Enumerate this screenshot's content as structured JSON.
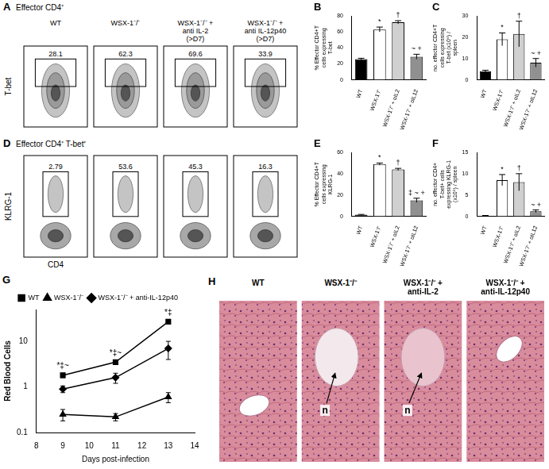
{
  "flow_panels": [
    {
      "panel": "A",
      "title": "Effector CD4⁺",
      "y_label": "T-bet",
      "headers": [
        "WT",
        "WSX-1⁻/⁻",
        "WSX-1⁻/⁻ + anti IL-2 (>D7)",
        "WSX-1⁻/⁻ + anti IL-12p40 (>D7)"
      ],
      "gates": [
        28.1,
        62.3,
        69.6,
        33.9
      ]
    },
    {
      "panel": "D",
      "title": "Effector CD4⁺ T-bet⁺",
      "y_label": "KLRG-1",
      "x_label": "CD4",
      "gates": [
        2.79,
        53.6,
        45.3,
        16.3
      ]
    }
  ],
  "chart_data": [
    {
      "panel": "B",
      "type": "bar",
      "y_label": "% Effector CD4+T cells expressing T-bet",
      "categories": [
        "WT",
        "WSX-1⁻/⁻",
        "WSX-1⁻/⁻ + αIL2",
        "WSX-1⁻/⁻ + αIL12"
      ],
      "values": [
        26,
        63,
        72,
        29
      ],
      "errors": [
        1,
        3,
        2,
        3
      ],
      "annotations": [
        null,
        "*",
        "†",
        "~ +"
      ],
      "colors": [
        "#000000",
        "#ffffff",
        "#d0d0d0",
        "#909090"
      ],
      "ylim": [
        0,
        80
      ],
      "yticks": [
        0,
        20,
        40,
        60,
        80
      ],
      "grid": false
    },
    {
      "panel": "C",
      "type": "bar",
      "y_label": "no. effector CD4+T cells expressing T-bet (x10⁶) / spleen",
      "categories": [
        "WT",
        "WSX-1⁻/⁻",
        "WSX-1⁻/⁻ + αIL2",
        "WSX-1⁻/⁻ + αIL12"
      ],
      "values": [
        4,
        19,
        21.5,
        8
      ],
      "errors": [
        0.5,
        3,
        6,
        2
      ],
      "annotations": [
        null,
        "*",
        "†",
        "~ +"
      ],
      "colors": [
        "#000000",
        "#ffffff",
        "#d0d0d0",
        "#909090"
      ],
      "ylim": [
        0,
        30
      ],
      "yticks": [
        0,
        10,
        20,
        30
      ],
      "grid": false
    },
    {
      "panel": "E",
      "type": "bar",
      "y_label": "% Effector CD4+T cells expressing KLRG-1",
      "categories": [
        "WT",
        "WSX-1⁻/⁻",
        "WSX-1⁻/⁻ + αIL2",
        "WSX-1⁻/⁻ + αIL12"
      ],
      "values": [
        1.5,
        49,
        44,
        15
      ],
      "errors": [
        0.3,
        1,
        1,
        2
      ],
      "annotations": [
        null,
        "*",
        "†",
        "‡ ~ +"
      ],
      "colors": [
        "#000000",
        "#ffffff",
        "#d0d0d0",
        "#909090"
      ],
      "ylim": [
        0,
        60
      ],
      "yticks": [
        0,
        20,
        40,
        60
      ],
      "grid": false
    },
    {
      "panel": "F",
      "type": "bar",
      "y_label": "no. effector CD4+ T-bet+ cells expressing KLRG-1 (x10⁶) / spleen",
      "categories": [
        "WT",
        "WSX-1⁻/⁻",
        "WSX-1⁻/⁻ + αIL2",
        "WSX-1⁻/⁻ + αIL12"
      ],
      "values": [
        0.1,
        8.5,
        8,
        1.2
      ],
      "errors": [
        0.1,
        1.3,
        2,
        0.3
      ],
      "annotations": [
        null,
        "*",
        "†",
        "~ +"
      ],
      "colors": [
        "#000000",
        "#ffffff",
        "#d0d0d0",
        "#909090"
      ],
      "ylim": [
        0,
        15
      ],
      "yticks": [
        0,
        5,
        10,
        15
      ],
      "grid": false
    },
    {
      "panel": "G",
      "type": "line",
      "x_label": "Days post-infection",
      "y_label": "Red Blood Cells",
      "x": [
        9,
        11,
        13
      ],
      "series": [
        {
          "name": "WT",
          "color": "#000000",
          "marker": "square",
          "values": [
            1.8,
            3.5,
            27
          ],
          "errors": [
            0.2,
            0.3,
            2
          ]
        },
        {
          "name": "WSX-1⁻/⁻",
          "color": "#000000",
          "marker": "triangle",
          "values": [
            0.25,
            0.22,
            0.6
          ],
          "errors": [
            0.07,
            0.04,
            0.15
          ]
        },
        {
          "name": "WSX-1⁻/⁻ + anti-IL-12p40",
          "color": "#000000",
          "marker": "diamond",
          "values": [
            0.9,
            1.6,
            7
          ],
          "errors": [
            0.15,
            0.4,
            3
          ]
        }
      ],
      "annotations": [
        {
          "x": 9,
          "text": "*‡~"
        },
        {
          "x": 11,
          "text": "*‡~"
        },
        {
          "x": 13,
          "text": "*‡"
        }
      ],
      "xlim": [
        8,
        14
      ],
      "xticks": [
        8,
        9,
        10,
        11,
        12,
        13,
        14
      ],
      "ylim": [
        0.1,
        50
      ],
      "yticks": [
        0.1,
        1,
        10
      ],
      "log": "y",
      "grid": false,
      "legend": "top"
    }
  ],
  "histology": {
    "panel": "H",
    "images": [
      {
        "label": "WT"
      },
      {
        "label": "WSX-1⁻/⁻",
        "annotation": "n"
      },
      {
        "label": "WSX-1⁻/⁻ + anti-IL-2",
        "annotation": "n"
      },
      {
        "label": "WSX-1⁻/⁻ + anti-IL-12p40"
      }
    ]
  }
}
